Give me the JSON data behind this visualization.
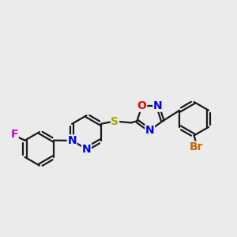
{
  "bg_color": "#ebebeb",
  "bond_color": "#1a1a1a",
  "bond_width": 1.6,
  "atom_colors": {
    "F": "#cc00cc",
    "N": "#0000ee",
    "S": "#aaaa00",
    "O": "#ee0000",
    "Br": "#cc6600",
    "C": "#1a1a1a"
  },
  "atom_fontsizes": {
    "F": 10,
    "N": 10,
    "S": 10,
    "O": 10,
    "Br": 10,
    "C": 9
  }
}
